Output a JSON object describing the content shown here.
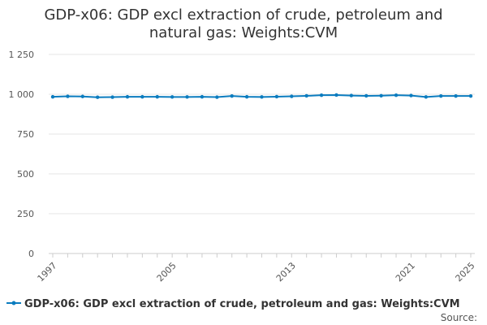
{
  "chart_data": {
    "type": "line",
    "title_lines": [
      "GDP-x06: GDP excl extraction of crude, petroleum and",
      "natural gas: Weights:CVM"
    ],
    "x": [
      1997,
      1998,
      1999,
      2000,
      2001,
      2002,
      2003,
      2004,
      2005,
      2006,
      2007,
      2008,
      2009,
      2010,
      2011,
      2012,
      2013,
      2014,
      2015,
      2016,
      2017,
      2018,
      2019,
      2020,
      2021,
      2022,
      2023,
      2024,
      2025
    ],
    "series": [
      {
        "name": "GDP-x06: GDP excl extraction of crude, petroleum and gas: Weights:CVM",
        "values": [
          984,
          987,
          986,
          981,
          982,
          984,
          984,
          984,
          983,
          983,
          984,
          982,
          989,
          984,
          983,
          985,
          987,
          990,
          994,
          995,
          992,
          990,
          991,
          994,
          992,
          983,
          989,
          989,
          989
        ]
      }
    ],
    "x_tick_labels": [
      "1997",
      "2005",
      "2013",
      "2021",
      "2025"
    ],
    "y_tick_labels": [
      "0",
      "250",
      "500",
      "750",
      "1 000",
      "1 250"
    ],
    "y_ticks": [
      0,
      250,
      500,
      750,
      1000,
      1250
    ],
    "ylim": [
      0,
      1250
    ],
    "xlim": [
      1997,
      2025
    ],
    "grid": "horizontal",
    "legend_position": "bottom",
    "source_label": "Source:",
    "colors": {
      "series": "#0b7cbf",
      "grid": "#e6e6e6",
      "axis": "#cccccc"
    }
  }
}
